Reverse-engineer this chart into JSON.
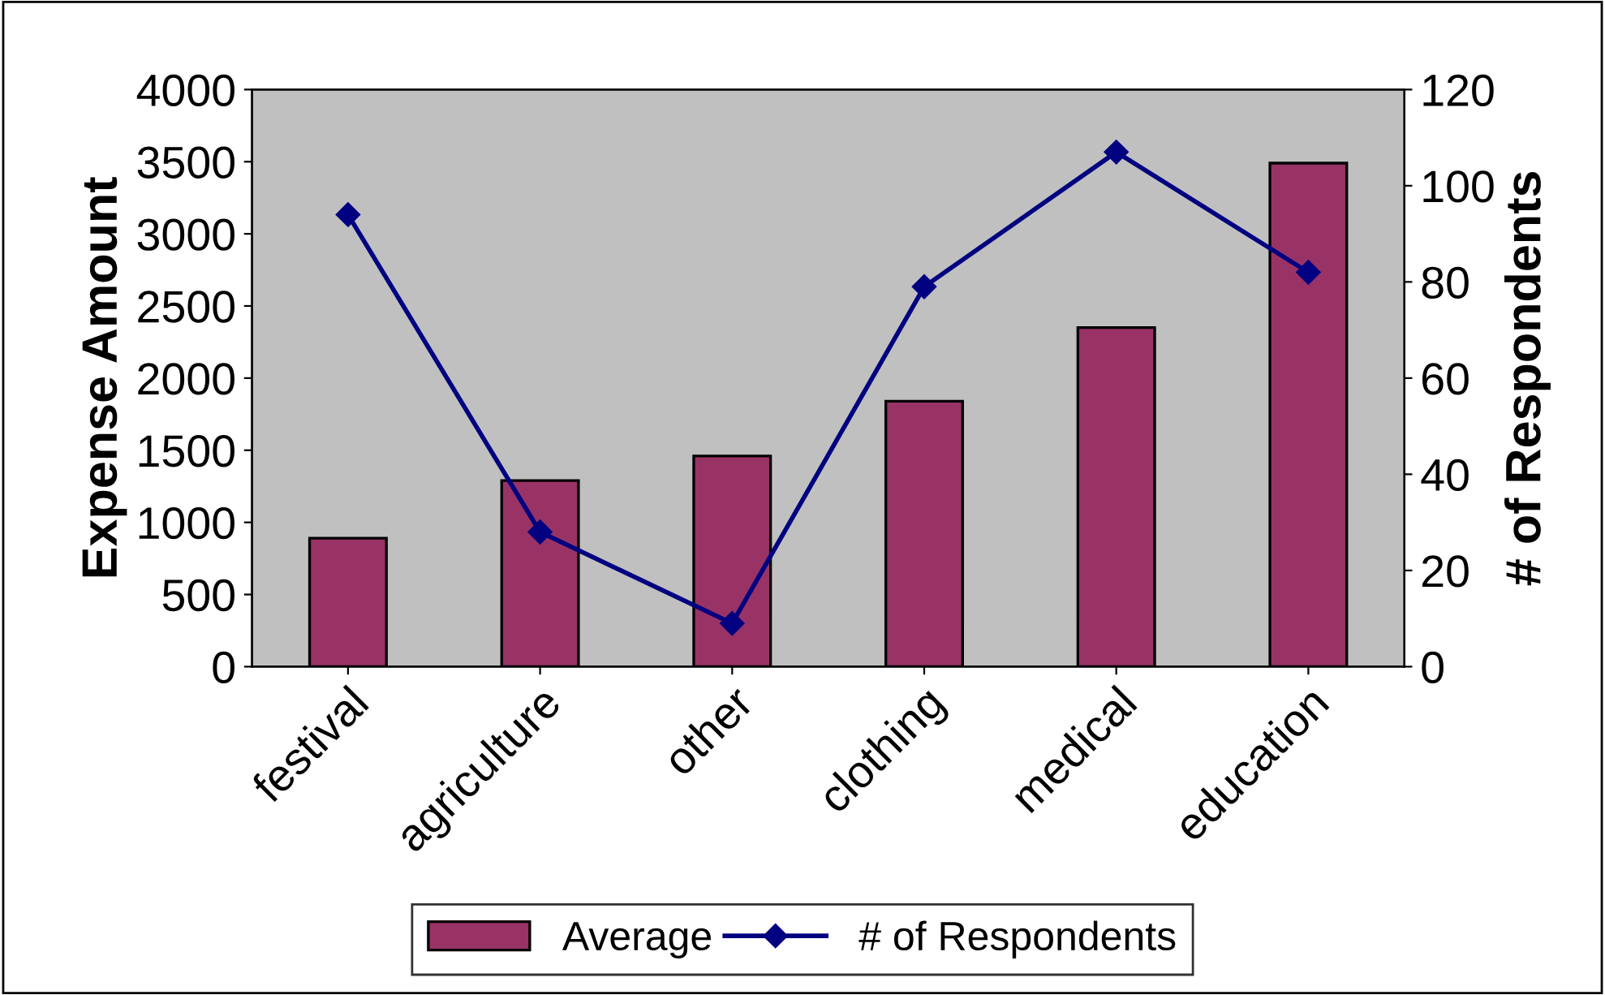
{
  "chart_data": {
    "type": "bar",
    "categories": [
      "festival",
      "agriculture",
      "other",
      "clothing",
      "medical",
      "education"
    ],
    "ylabel": "Expense Amount",
    "y2label": "# of Respondents",
    "series": [
      {
        "name": "Average",
        "color": "#993366",
        "values": [
          890,
          1290,
          1460,
          1840,
          2350,
          3490
        ]
      },
      {
        "name": "# of Respondents",
        "type": "line",
        "axis": "y2",
        "color": "#000080",
        "marker": "diamond",
        "values": [
          94,
          28,
          9,
          79,
          107,
          82
        ]
      }
    ],
    "ylim": [
      0,
      4000
    ],
    "yticks": [
      0,
      500,
      1000,
      1500,
      2000,
      2500,
      3000,
      3500,
      4000
    ],
    "y2lim": [
      0,
      120
    ],
    "y2ticks": [
      0,
      20,
      40,
      60,
      80,
      100,
      120
    ],
    "grid": false,
    "legend": "bottom"
  }
}
